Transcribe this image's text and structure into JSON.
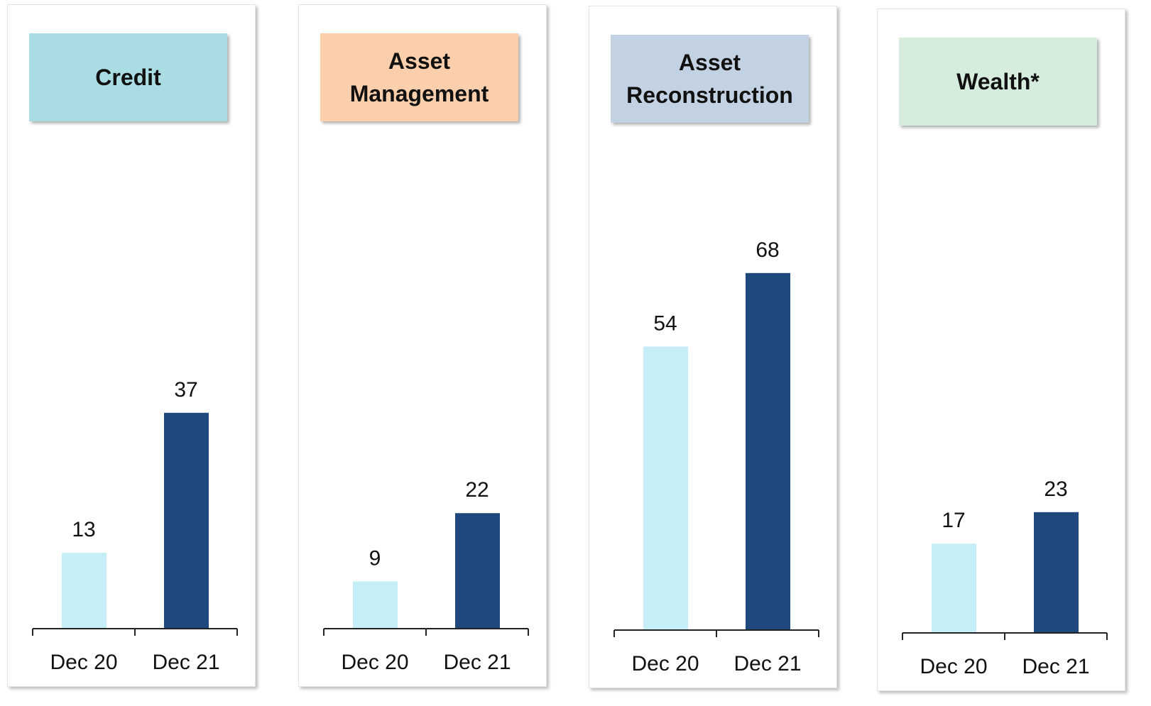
{
  "chart_data": [
    {
      "type": "bar",
      "title": "Credit",
      "title_color": "#a9dce3",
      "categories": [
        "Dec 20",
        "Dec 21"
      ],
      "values": [
        13,
        37
      ],
      "colors": [
        "#c6eef6",
        "#1f487c"
      ],
      "ylim": [
        0,
        90
      ]
    },
    {
      "type": "bar",
      "title": "Asset Management",
      "title_color": "#fbcfab",
      "categories": [
        "Dec 20",
        "Dec 21"
      ],
      "values": [
        9,
        22
      ],
      "colors": [
        "#c6eef6",
        "#1f487c"
      ],
      "ylim": [
        0,
        100
      ]
    },
    {
      "type": "bar",
      "title": "Asset Reconstruction",
      "title_color": "#c3d2e3",
      "categories": [
        "Dec 20",
        "Dec 21"
      ],
      "values": [
        54,
        68
      ],
      "colors": [
        "#c6eef6",
        "#1f487c"
      ],
      "ylim": [
        0,
        100
      ]
    },
    {
      "type": "bar",
      "title": "Wealth*",
      "title_color": "#d6eddd",
      "categories": [
        "Dec 20",
        "Dec 21"
      ],
      "values": [
        17,
        23
      ],
      "colors": [
        "#c6eef6",
        "#1f487c"
      ],
      "ylim": [
        0,
        100
      ]
    }
  ]
}
